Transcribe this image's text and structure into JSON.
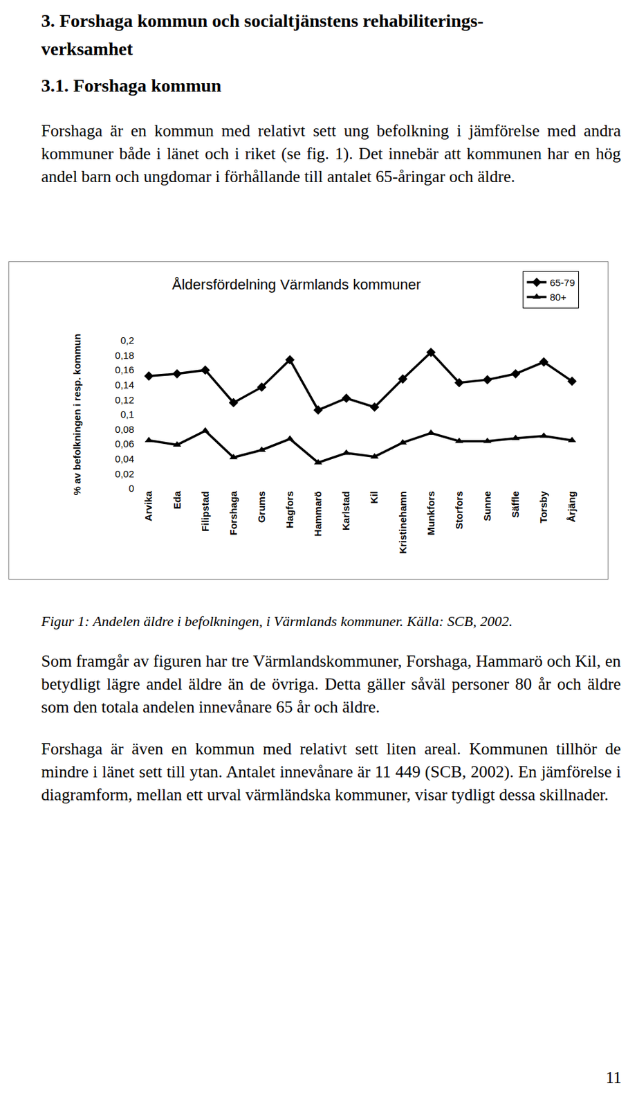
{
  "heading": [
    "3. Forshaga kommun och socialtjänstens rehabiliterings-",
    "verksamhet"
  ],
  "subheading": "3.1. Forshaga kommun",
  "paragraphs": [
    "Forshaga är en kommun med relativt sett ung befolkning i jämförelse med andra kommuner både i länet och i riket (se fig. 1). Det innebär att kommunen har en hög andel barn och ungdomar i förhållande till antalet 65-åringar och äldre.",
    "Som framgår av figuren har tre Värmlandskommuner, Forshaga, Hammarö och Kil, en betydligt lägre andel äldre än de övriga. Detta gäller såväl personer 80 år och äldre som den totala andelen innevånare 65 år och äldre.",
    "Forshaga är även en kommun med relativt sett liten areal. Kommunen tillhör de mindre i länet sett till ytan. Antalet innevånare är 11 449 (SCB, 2002). En jämförelse i diagramform, mellan ett urval värmländska kommuner, visar tydligt dessa skillnader."
  ],
  "chart_data": {
    "type": "line",
    "title": "Åldersfördelning Värmlands kommuner",
    "y_label": "% av befolkningen i resp. kommun",
    "categories": [
      "Arvika",
      "Eda",
      "Filipstad",
      "Forshaga",
      "Grums",
      "Hagfors",
      "Hammarö",
      "Karlstad",
      "Kil",
      "Kristinehamn",
      "Munkfors",
      "Storfors",
      "Sunne",
      "Säffle",
      "Torsby",
      "Årjäng"
    ],
    "series": [
      {
        "name": "65-79",
        "color": "#000000",
        "marker": "diamond",
        "values": [
          0.152,
          0.155,
          0.16,
          0.116,
          0.137,
          0.174,
          0.106,
          0.122,
          0.11,
          0.148,
          0.184,
          0.143,
          0.147,
          0.155,
          0.171,
          0.145
        ]
      },
      {
        "name": "80+",
        "color": "#000000",
        "marker": "triangle-up",
        "values": [
          0.065,
          0.059,
          0.078,
          0.042,
          0.052,
          0.067,
          0.035,
          0.048,
          0.043,
          0.062,
          0.075,
          0.064,
          0.064,
          0.068,
          0.071,
          0.065
        ]
      }
    ],
    "ylim": [
      0,
      0.2
    ],
    "yticks": [
      0,
      {
        "value": 0.02,
        "label": "0,02"
      },
      {
        "value": 0.04,
        "label": "0,04"
      },
      {
        "value": 0.06,
        "label": "0,06"
      },
      {
        "value": 0.08,
        "label": "0,08"
      },
      {
        "value": 0.1,
        "label": "0,1"
      },
      {
        "value": 0.12,
        "label": "0,12"
      },
      {
        "value": 0.14,
        "label": "0,14"
      },
      {
        "value": 0.16,
        "label": "0,16"
      },
      {
        "value": 0.18,
        "label": "0,18"
      },
      {
        "value": 0.2,
        "label": "0,2"
      }
    ],
    "grid": false,
    "legend": "top right"
  },
  "caption": "Figur 1: Andelen äldre i befolkningen, i Värmlands kommuner. Källa: SCB, 2002.",
  "page_number": "11"
}
